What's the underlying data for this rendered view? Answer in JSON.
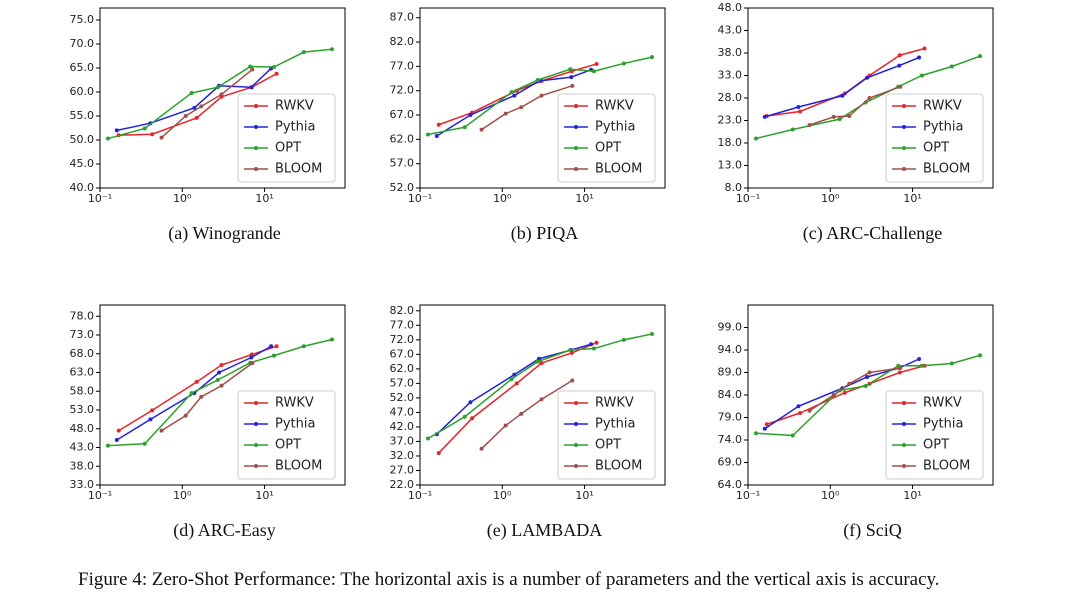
{
  "chart_data": [
    {
      "type": "line",
      "title": "(a) Winogrande",
      "xscale": "log",
      "legend": "lower right",
      "xlim": [
        0.1,
        95
      ],
      "xticks": [
        {
          "value": 0.1,
          "label": "10⁻¹"
        },
        {
          "value": 1,
          "label": "10⁰"
        },
        {
          "value": 10,
          "label": "10¹"
        }
      ],
      "ylim": [
        40,
        77.5
      ],
      "yticks": [
        {
          "value": 40,
          "label": "40.0"
        },
        {
          "value": 45,
          "label": "45.0"
        },
        {
          "value": 50,
          "label": "50.0"
        },
        {
          "value": 55,
          "label": "55.0"
        },
        {
          "value": 60,
          "label": "60.0"
        },
        {
          "value": 65,
          "label": "65.0"
        },
        {
          "value": 70,
          "label": "70.0"
        },
        {
          "value": 75,
          "label": "75.0"
        }
      ],
      "series": [
        {
          "name": "RWKV",
          "color": "#e3262a",
          "x": [
            0.169,
            0.43,
            1.5,
            3,
            7,
            14
          ],
          "values": [
            51,
            51.2,
            54.6,
            59.0,
            61.0,
            63.8
          ]
        },
        {
          "name": "Pythia",
          "color": "#2323d8",
          "x": [
            0.16,
            0.41,
            1.4,
            2.8,
            6.9,
            12
          ],
          "values": [
            52.0,
            53.5,
            56.7,
            61.3,
            61.0,
            64.9
          ]
        },
        {
          "name": "OPT",
          "color": "#2ca02c",
          "x": [
            0.125,
            0.35,
            1.3,
            2.7,
            6.7,
            13,
            30,
            66
          ],
          "values": [
            50.3,
            52.4,
            59.8,
            61.0,
            65.3,
            65.2,
            68.3,
            68.9
          ]
        },
        {
          "name": "BLOOM",
          "color": "#a0504a",
          "x": [
            0.56,
            1.1,
            1.7,
            3,
            7.1
          ],
          "values": [
            50.5,
            55.0,
            57.0,
            59.5,
            64.7
          ]
        }
      ]
    },
    {
      "type": "line",
      "title": "(b) PIQA",
      "xscale": "log",
      "legend": "lower right",
      "xlim": [
        0.1,
        95
      ],
      "xticks": [
        {
          "value": 0.1,
          "label": "10⁻¹"
        },
        {
          "value": 1,
          "label": "10⁰"
        },
        {
          "value": 10,
          "label": "10¹"
        }
      ],
      "ylim": [
        52,
        89
      ],
      "yticks": [
        {
          "value": 52,
          "label": "52.0"
        },
        {
          "value": 57,
          "label": "57.0"
        },
        {
          "value": 62,
          "label": "62.0"
        },
        {
          "value": 67,
          "label": "67.0"
        },
        {
          "value": 72,
          "label": "72.0"
        },
        {
          "value": 77,
          "label": "77.0"
        },
        {
          "value": 82,
          "label": "82.0"
        },
        {
          "value": 87,
          "label": "87.0"
        }
      ],
      "series": [
        {
          "name": "RWKV",
          "color": "#e3262a",
          "x": [
            0.169,
            0.43,
            1.5,
            3,
            7,
            14
          ],
          "values": [
            65.0,
            67.5,
            72.0,
            74.0,
            76.0,
            77.5
          ]
        },
        {
          "name": "Pythia",
          "color": "#2323d8",
          "x": [
            0.16,
            0.41,
            1.4,
            2.8,
            6.9,
            12
          ],
          "values": [
            62.7,
            67.0,
            71.0,
            74.0,
            74.8,
            76.3
          ]
        },
        {
          "name": "OPT",
          "color": "#2ca02c",
          "x": [
            0.125,
            0.35,
            1.3,
            2.7,
            6.7,
            13,
            30,
            66
          ],
          "values": [
            63.0,
            64.5,
            71.7,
            74.2,
            76.4,
            76.0,
            77.6,
            78.9
          ]
        },
        {
          "name": "BLOOM",
          "color": "#a0504a",
          "x": [
            0.56,
            1.1,
            1.7,
            3,
            7.1
          ],
          "values": [
            64.0,
            67.3,
            68.6,
            71.0,
            73.0
          ]
        }
      ]
    },
    {
      "type": "line",
      "title": "(c) ARC-Challenge",
      "xscale": "log",
      "legend": "lower right",
      "xlim": [
        0.1,
        95
      ],
      "xticks": [
        {
          "value": 0.1,
          "label": "10⁻¹"
        },
        {
          "value": 1,
          "label": "10⁰"
        },
        {
          "value": 10,
          "label": "10¹"
        }
      ],
      "ylim": [
        8,
        48
      ],
      "yticks": [
        {
          "value": 8,
          "label": "8.0"
        },
        {
          "value": 13,
          "label": "13.0"
        },
        {
          "value": 18,
          "label": "18.0"
        },
        {
          "value": 23,
          "label": "23.0"
        },
        {
          "value": 28,
          "label": "28.0"
        },
        {
          "value": 33,
          "label": "33.0"
        },
        {
          "value": 38,
          "label": "38.0"
        },
        {
          "value": 43,
          "label": "43.0"
        },
        {
          "value": 48,
          "label": "48.0"
        }
      ],
      "series": [
        {
          "name": "RWKV",
          "color": "#e3262a",
          "x": [
            0.169,
            0.43,
            1.5,
            3,
            7,
            14
          ],
          "values": [
            24.0,
            25.0,
            29.0,
            33.0,
            37.5,
            39.0
          ]
        },
        {
          "name": "Pythia",
          "color": "#2323d8",
          "x": [
            0.16,
            0.41,
            1.4,
            2.8,
            6.9,
            12
          ],
          "values": [
            23.8,
            26.0,
            28.5,
            32.5,
            35.2,
            37.0
          ]
        },
        {
          "name": "OPT",
          "color": "#2ca02c",
          "x": [
            0.125,
            0.35,
            1.3,
            2.7,
            6.7,
            13,
            30,
            66
          ],
          "values": [
            19.0,
            21.0,
            23.3,
            27.0,
            30.5,
            33.0,
            35.0,
            37.3
          ]
        },
        {
          "name": "BLOOM",
          "color": "#a0504a",
          "x": [
            0.56,
            1.1,
            1.7,
            3,
            7.1
          ],
          "values": [
            22.0,
            23.8,
            24.0,
            28.0,
            30.5
          ]
        }
      ]
    },
    {
      "type": "line",
      "title": "(d) ARC-Easy",
      "xscale": "log",
      "legend": "lower right",
      "xlim": [
        0.1,
        95
      ],
      "xticks": [
        {
          "value": 0.1,
          "label": "10⁻¹"
        },
        {
          "value": 1,
          "label": "10⁰"
        },
        {
          "value": 10,
          "label": "10¹"
        }
      ],
      "ylim": [
        33,
        81
      ],
      "yticks": [
        {
          "value": 33,
          "label": "33.0"
        },
        {
          "value": 38,
          "label": "38.0"
        },
        {
          "value": 43,
          "label": "43.0"
        },
        {
          "value": 48,
          "label": "48.0"
        },
        {
          "value": 53,
          "label": "53.0"
        },
        {
          "value": 58,
          "label": "58.0"
        },
        {
          "value": 63,
          "label": "63.0"
        },
        {
          "value": 68,
          "label": "68.0"
        },
        {
          "value": 73,
          "label": "73.0"
        },
        {
          "value": 78,
          "label": "78.0"
        }
      ],
      "series": [
        {
          "name": "RWKV",
          "color": "#e3262a",
          "x": [
            0.169,
            0.43,
            1.5,
            3,
            7,
            14
          ],
          "values": [
            47.5,
            52.9,
            60.5,
            65.0,
            67.8,
            70.0
          ]
        },
        {
          "name": "Pythia",
          "color": "#2323d8",
          "x": [
            0.16,
            0.41,
            1.4,
            2.8,
            6.9,
            12
          ],
          "values": [
            45.0,
            50.5,
            57.5,
            63.0,
            67.0,
            70.0
          ]
        },
        {
          "name": "OPT",
          "color": "#2ca02c",
          "x": [
            0.125,
            0.35,
            1.3,
            2.7,
            6.7,
            13,
            30,
            66
          ],
          "values": [
            43.5,
            44.0,
            57.5,
            61.0,
            65.6,
            67.5,
            70.0,
            71.8
          ]
        },
        {
          "name": "BLOOM",
          "color": "#a0504a",
          "x": [
            0.56,
            1.1,
            1.7,
            3,
            7.1
          ],
          "values": [
            47.5,
            51.5,
            56.5,
            59.5,
            65.5
          ]
        }
      ]
    },
    {
      "type": "line",
      "title": "(e) LAMBADA",
      "xscale": "log",
      "legend": "lower right",
      "xlim": [
        0.1,
        95
      ],
      "xticks": [
        {
          "value": 0.1,
          "label": "10⁻¹"
        },
        {
          "value": 1,
          "label": "10⁰"
        },
        {
          "value": 10,
          "label": "10¹"
        }
      ],
      "ylim": [
        22,
        84
      ],
      "yticks": [
        {
          "value": 22,
          "label": "22.0"
        },
        {
          "value": 27,
          "label": "27.0"
        },
        {
          "value": 32,
          "label": "32.0"
        },
        {
          "value": 37,
          "label": "37.0"
        },
        {
          "value": 42,
          "label": "42.0"
        },
        {
          "value": 47,
          "label": "47.0"
        },
        {
          "value": 52,
          "label": "52.0"
        },
        {
          "value": 57,
          "label": "57.0"
        },
        {
          "value": 62,
          "label": "62.0"
        },
        {
          "value": 67,
          "label": "67.0"
        },
        {
          "value": 72,
          "label": "72.0"
        },
        {
          "value": 77,
          "label": "77.0"
        },
        {
          "value": 82,
          "label": "82.0"
        }
      ],
      "series": [
        {
          "name": "RWKV",
          "color": "#e3262a",
          "x": [
            0.169,
            0.43,
            1.5,
            3,
            7,
            14
          ],
          "values": [
            33.0,
            45.0,
            57.0,
            64.0,
            67.5,
            71.0
          ]
        },
        {
          "name": "Pythia",
          "color": "#2323d8",
          "x": [
            0.16,
            0.41,
            1.4,
            2.8,
            6.9,
            12
          ],
          "values": [
            39.5,
            50.5,
            60.0,
            65.5,
            68.5,
            70.5
          ]
        },
        {
          "name": "OPT",
          "color": "#2ca02c",
          "x": [
            0.125,
            0.35,
            1.3,
            2.7,
            6.7,
            13,
            30,
            66
          ],
          "values": [
            38.0,
            45.5,
            58.5,
            64.5,
            68.5,
            69.0,
            72.0,
            74.0
          ]
        },
        {
          "name": "BLOOM",
          "color": "#a0504a",
          "x": [
            0.56,
            1.1,
            1.7,
            3,
            7.1
          ],
          "values": [
            34.5,
            42.5,
            46.5,
            51.5,
            58.0
          ]
        }
      ]
    },
    {
      "type": "line",
      "title": "(f) SciQ",
      "xscale": "log",
      "legend": "lower right",
      "xlim": [
        0.1,
        95
      ],
      "xticks": [
        {
          "value": 0.1,
          "label": "10⁻¹"
        },
        {
          "value": 1,
          "label": "10⁰"
        },
        {
          "value": 10,
          "label": "10¹"
        }
      ],
      "ylim": [
        64,
        104
      ],
      "yticks": [
        {
          "value": 64,
          "label": "64.0"
        },
        {
          "value": 69,
          "label": "69.0"
        },
        {
          "value": 74,
          "label": "74.0"
        },
        {
          "value": 79,
          "label": "79.0"
        },
        {
          "value": 84,
          "label": "84.0"
        },
        {
          "value": 89,
          "label": "89.0"
        },
        {
          "value": 94,
          "label": "94.0"
        },
        {
          "value": 99,
          "label": "99.0"
        }
      ],
      "series": [
        {
          "name": "RWKV",
          "color": "#e3262a",
          "x": [
            0.169,
            0.43,
            1.5,
            3,
            7,
            14
          ],
          "values": [
            77.5,
            80.0,
            84.5,
            86.5,
            89.0,
            90.5
          ]
        },
        {
          "name": "Pythia",
          "color": "#2323d8",
          "x": [
            0.16,
            0.41,
            1.4,
            2.8,
            6.9,
            12
          ],
          "values": [
            76.5,
            81.5,
            85.5,
            88.0,
            90.0,
            92.0
          ]
        },
        {
          "name": "OPT",
          "color": "#2ca02c",
          "x": [
            0.125,
            0.35,
            1.3,
            2.7,
            6.7,
            13,
            30,
            66
          ],
          "values": [
            75.5,
            75.0,
            85.0,
            86.0,
            90.5,
            90.5,
            91.0,
            92.8
          ]
        },
        {
          "name": "BLOOM",
          "color": "#a0504a",
          "x": [
            0.56,
            1.1,
            1.7,
            3,
            7.1
          ],
          "values": [
            80.5,
            84.0,
            86.5,
            89.0,
            90.0
          ]
        }
      ]
    }
  ],
  "caption": "Figure 4: Zero-Shot Performance: The horizontal axis is a number of parameters and the vertical axis is accuracy."
}
